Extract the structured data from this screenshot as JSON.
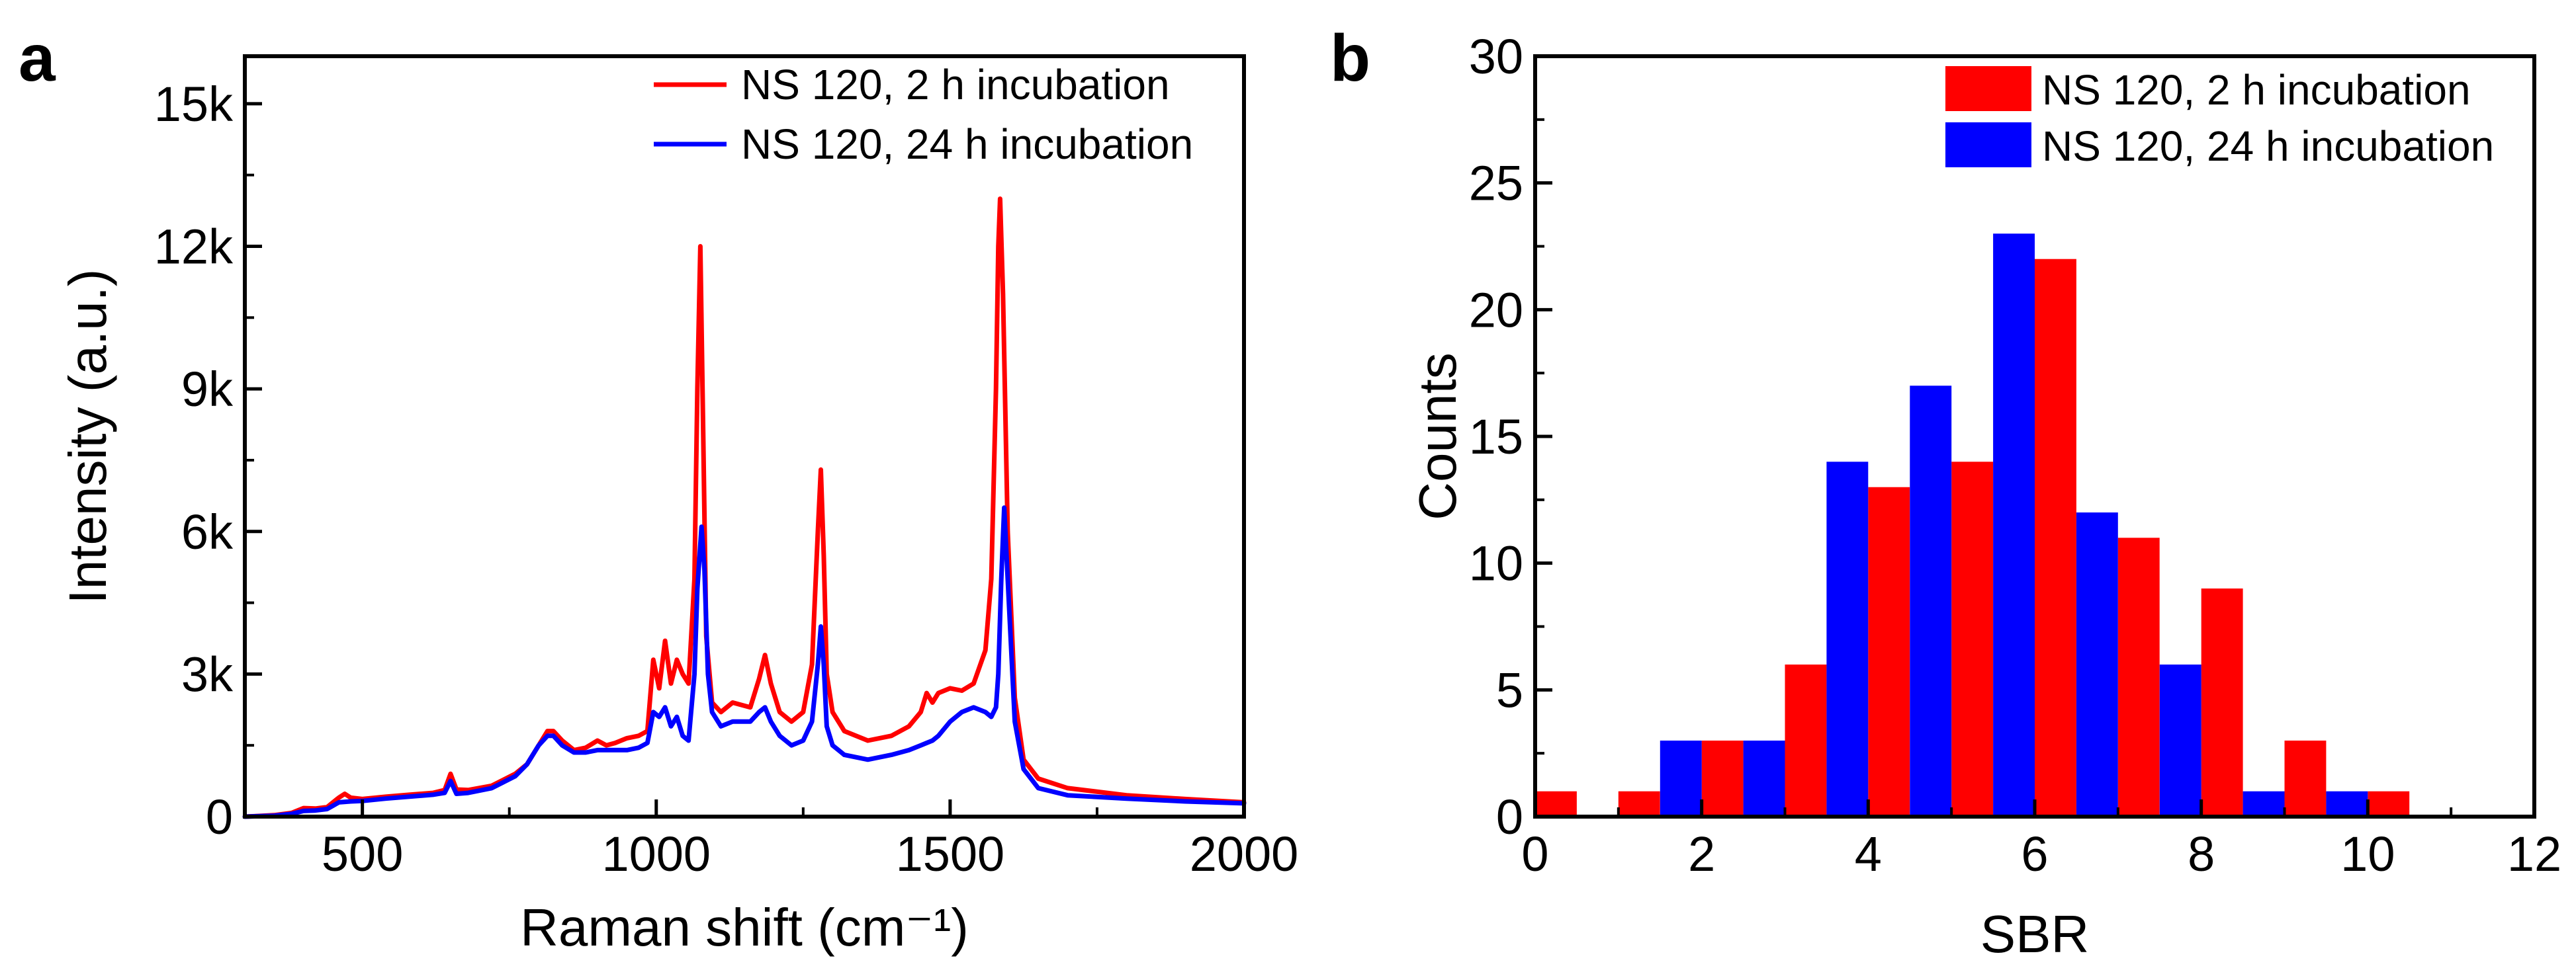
{
  "panels": {
    "a": "a",
    "b": "b"
  },
  "chart_data": [
    {
      "type": "line",
      "panel": "a",
      "xlabel": "Raman shift (cm⁻¹)",
      "ylabel": "Intensity (a.u.)",
      "xlim": [
        300,
        2000
      ],
      "ylim": [
        0,
        16000
      ],
      "xticks": [
        500,
        1000,
        1500,
        2000
      ],
      "xtick_labels": [
        "500",
        "1000",
        "1500",
        "2000"
      ],
      "yticks": [
        0,
        3000,
        6000,
        9000,
        12000,
        15000
      ],
      "ytick_labels": [
        "0",
        "3k",
        "6k",
        "9k",
        "12k",
        "15k"
      ],
      "legend": "top-right",
      "series": [
        {
          "name": "NS 120, 2 h incubation",
          "color": "#ff0000",
          "x": [
            300,
            350,
            380,
            400,
            420,
            440,
            460,
            470,
            480,
            500,
            540,
            580,
            620,
            640,
            650,
            660,
            680,
            720,
            760,
            780,
            800,
            815,
            825,
            840,
            860,
            880,
            900,
            915,
            930,
            950,
            970,
            985,
            995,
            1005,
            1015,
            1025,
            1035,
            1045,
            1055,
            1065,
            1070,
            1075,
            1080,
            1085,
            1095,
            1110,
            1130,
            1160,
            1175,
            1185,
            1195,
            1210,
            1230,
            1250,
            1265,
            1275,
            1280,
            1285,
            1290,
            1300,
            1320,
            1360,
            1400,
            1430,
            1450,
            1460,
            1470,
            1480,
            1500,
            1520,
            1540,
            1560,
            1570,
            1578,
            1582,
            1585,
            1590,
            1598,
            1610,
            1625,
            1650,
            1700,
            1800,
            1900,
            2000
          ],
          "values": [
            0,
            30,
            80,
            180,
            170,
            200,
            400,
            480,
            400,
            370,
            420,
            460,
            500,
            560,
            900,
            570,
            560,
            650,
            900,
            1100,
            1500,
            1800,
            1800,
            1600,
            1400,
            1450,
            1600,
            1500,
            1550,
            1650,
            1700,
            1800,
            3300,
            2700,
            3700,
            2800,
            3300,
            3000,
            2800,
            5000,
            9000,
            12000,
            8000,
            3800,
            2400,
            2200,
            2400,
            2300,
            2900,
            3400,
            2800,
            2200,
            2000,
            2200,
            3200,
            6000,
            7300,
            5500,
            3000,
            2200,
            1800,
            1600,
            1700,
            1900,
            2200,
            2600,
            2400,
            2600,
            2700,
            2650,
            2800,
            3500,
            5000,
            9000,
            12000,
            13000,
            11000,
            6000,
            2500,
            1200,
            800,
            600,
            450,
            370,
            300
          ]
        },
        {
          "name": "NS 120, 24 h incubation",
          "color": "#0000ff",
          "x": [
            300,
            350,
            380,
            400,
            420,
            440,
            460,
            480,
            500,
            540,
            580,
            620,
            640,
            650,
            660,
            680,
            720,
            760,
            780,
            800,
            815,
            825,
            840,
            860,
            880,
            900,
            930,
            950,
            970,
            985,
            995,
            1005,
            1015,
            1025,
            1035,
            1045,
            1055,
            1065,
            1070,
            1077,
            1082,
            1088,
            1095,
            1110,
            1130,
            1160,
            1175,
            1185,
            1195,
            1210,
            1230,
            1250,
            1265,
            1275,
            1280,
            1285,
            1290,
            1300,
            1320,
            1360,
            1400,
            1430,
            1450,
            1470,
            1480,
            1500,
            1520,
            1540,
            1560,
            1570,
            1578,
            1582,
            1587,
            1592,
            1600,
            1610,
            1625,
            1650,
            1700,
            1800,
            1900,
            2000
          ],
          "values": [
            0,
            20,
            60,
            120,
            130,
            160,
            300,
            320,
            330,
            380,
            420,
            460,
            500,
            750,
            480,
            500,
            600,
            850,
            1100,
            1500,
            1700,
            1700,
            1500,
            1350,
            1350,
            1400,
            1400,
            1400,
            1450,
            1550,
            2200,
            2100,
            2300,
            1900,
            2100,
            1700,
            1600,
            3000,
            4800,
            6100,
            5200,
            3000,
            2200,
            1900,
            2000,
            2000,
            2200,
            2300,
            2000,
            1700,
            1500,
            1600,
            2000,
            3200,
            4000,
            3200,
            1900,
            1500,
            1300,
            1200,
            1300,
            1400,
            1500,
            1600,
            1700,
            2000,
            2200,
            2300,
            2200,
            2100,
            2300,
            3000,
            5000,
            6500,
            4500,
            2000,
            1000,
            600,
            450,
            380,
            320,
            280
          ]
        }
      ]
    },
    {
      "type": "bar",
      "panel": "b",
      "xlabel": "SBR",
      "ylabel": "Counts",
      "xlim": [
        0,
        12
      ],
      "ylim": [
        0,
        30
      ],
      "xticks": [
        0,
        2,
        4,
        6,
        8,
        10,
        12
      ],
      "xtick_labels": [
        "0",
        "2",
        "4",
        "6",
        "8",
        "10",
        "12"
      ],
      "yticks": [
        0,
        5,
        10,
        15,
        20,
        25,
        30
      ],
      "ytick_labels": [
        "0",
        "5",
        "10",
        "15",
        "20",
        "25",
        "30"
      ],
      "bar_width": 0.5,
      "legend": "top-right",
      "series": [
        {
          "name": "NS 120, 2 h incubation",
          "color": "#ff0000",
          "x": [
            0.25,
            1.25,
            2.25,
            3.25,
            4.25,
            5.25,
            6.25,
            7.25,
            8.25,
            9.25,
            10.25
          ],
          "values": [
            1,
            1,
            3,
            6,
            13,
            14,
            22,
            11,
            9,
            3,
            1
          ]
        },
        {
          "name": "NS 120, 24 h incubation",
          "color": "#0000ff",
          "x": [
            1.75,
            2.75,
            3.75,
            4.75,
            5.75,
            6.75,
            7.75,
            8.75,
            9.75
          ],
          "values": [
            3,
            3,
            14,
            17,
            23,
            12,
            6,
            1,
            1
          ]
        }
      ]
    }
  ]
}
